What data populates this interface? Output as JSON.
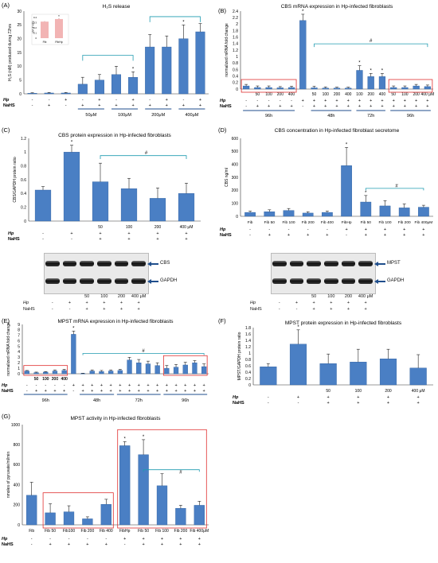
{
  "chart_data": [
    {
      "id": "A",
      "letter": "(A)",
      "type": "bar",
      "title": "H₂S release",
      "ylabel": "H₂S (nM) produced during 72hrs",
      "ylim": [
        0,
        30
      ],
      "yticks": [
        0,
        5,
        10,
        15,
        20,
        25,
        30
      ],
      "values": [
        0.2,
        0.3,
        0.3,
        3.5,
        5.0,
        7.0,
        6.0,
        17.0,
        17.0,
        20.0,
        22.5
      ],
      "errors": [
        0.2,
        0.2,
        0.2,
        2.5,
        2.0,
        3.0,
        2.0,
        4.5,
        4.0,
        5.0,
        3.0
      ],
      "stars": [
        6,
        9
      ],
      "row_labels": [
        "Hp",
        "NaHS"
      ],
      "rows": [
        [
          "-",
          "-",
          "+",
          "-",
          "+",
          "-",
          "+",
          "-",
          "+",
          "-",
          "+"
        ],
        [
          "-",
          "+",
          "-",
          "+",
          "+",
          "+",
          "+",
          "+",
          "+",
          "+",
          "+"
        ]
      ],
      "dose_labels": [
        "50μM",
        "100μM",
        "200μM",
        "400μM"
      ],
      "inset": {
        "categories": [
          "Fib",
          "FibHp"
        ],
        "values": [
          0.32,
          0.37
        ],
        "errors": [
          0.01,
          0.015
        ],
        "ylabel": "uM of H2S",
        "yticks": [
          "0",
          "0.1",
          "0.2",
          "0.3",
          "0.4"
        ],
        "stars": [
          1
        ]
      }
    },
    {
      "id": "B",
      "letter": "(B)",
      "type": "bar",
      "title": "CBS mRNA expression in Hp-infected fibroblasts",
      "ylabel": "normalized mRNA fold change",
      "ylim": [
        0,
        2.5
      ],
      "yticks": [
        "0",
        "0.2",
        "0.4",
        "0.6",
        "0.8",
        "1",
        "1.2",
        "1.4",
        "1.6",
        "1.8",
        "2",
        "2.2",
        "2.4"
      ],
      "values": [
        0.1,
        0.05,
        0.05,
        0.04,
        0.05,
        2.2,
        0.04,
        0.03,
        0.03,
        0.03,
        0.6,
        0.4,
        0.4,
        0.05,
        0.05,
        0.1,
        0.08
      ],
      "errors": [
        0.05,
        0.05,
        0.05,
        0.04,
        0.04,
        0.2,
        0.05,
        0.04,
        0.03,
        0.03,
        0.15,
        0.1,
        0.1,
        0.05,
        0.05,
        0.05,
        0.05
      ],
      "stars": [
        5,
        10,
        11,
        12
      ],
      "tick_labels": [
        "",
        "50",
        "100",
        "200",
        "400",
        "",
        "50",
        "100",
        "200",
        "400",
        "100",
        "200",
        "400",
        "50",
        "100",
        "200",
        "400 μM"
      ],
      "row_labels": [
        "Hp",
        "NaHS"
      ],
      "rows": [
        [
          "-",
          "-",
          "-",
          "-",
          "-",
          "+",
          "+",
          "+",
          "+",
          "+",
          "+",
          "+",
          "+",
          "+",
          "+",
          "+",
          "+"
        ],
        [
          "-",
          "+",
          "+",
          "+",
          "+",
          "-",
          "+",
          "+",
          "+",
          "+",
          "+",
          "+",
          "+",
          "+",
          "+",
          "+",
          "+"
        ]
      ],
      "group_labels": [
        "96h",
        "48h",
        "72h",
        "96h"
      ],
      "hash": "#"
    },
    {
      "id": "C",
      "letter": "(C)",
      "type": "bar",
      "title": "CBS protein expression in Hp-infected fibroblasts",
      "ylabel": "CBS/GAPDH protein ratio",
      "ylim": [
        0,
        1.2
      ],
      "yticks": [
        "0",
        "0.2",
        "0.4",
        "0.6",
        "0.8",
        "1",
        "1.2"
      ],
      "values": [
        0.45,
        1.0,
        0.57,
        0.47,
        0.33,
        0.4
      ],
      "errors": [
        0.05,
        0.1,
        0.27,
        0.15,
        0.15,
        0.15
      ],
      "stars": [
        1
      ],
      "tick_labels": [
        "",
        "",
        "50",
        "100",
        "200",
        "400 μM"
      ],
      "row_labels": [
        "Hp",
        "NaHS"
      ],
      "rows": [
        [
          "-",
          "+",
          "+",
          "+",
          "+",
          "+"
        ],
        [
          "-",
          "-",
          "+",
          "+",
          "+",
          "+"
        ]
      ],
      "hash": "#",
      "blot": {
        "bands": [
          "CBS",
          "GAPDH"
        ],
        "lanes": [
          "",
          "",
          "50",
          "100",
          "200",
          "400 μM"
        ],
        "hp": [
          "-",
          "+",
          "+",
          "+",
          "+",
          "+"
        ],
        "nahs": [
          "-",
          "-",
          "+",
          "+",
          "+",
          "+"
        ]
      }
    },
    {
      "id": "D",
      "letter": "(D)",
      "type": "bar",
      "title": "CBS concentration in Hp-infected fibroblast secretome",
      "ylabel": "CBS ng/ml",
      "ylim": [
        0,
        600
      ],
      "yticks": [
        "0",
        "100",
        "200",
        "300",
        "400",
        "500",
        "600"
      ],
      "categories": [
        "Fib",
        "Fib 50",
        "Fib 100",
        "Fib 200",
        "Fib 400",
        "FibHp",
        "Fib 50",
        "Fib 100",
        "Fib 200",
        "Fib 400μM"
      ],
      "values": [
        30,
        35,
        45,
        25,
        30,
        390,
        110,
        80,
        65,
        70
      ],
      "errors": [
        10,
        15,
        15,
        10,
        10,
        140,
        50,
        40,
        30,
        15
      ],
      "stars": [
        5,
        6
      ],
      "row_labels": [
        "Hp",
        "NaHS"
      ],
      "rows": [
        [
          "-",
          "-",
          "-",
          "-",
          "-",
          "+",
          "+",
          "+",
          "+",
          "+"
        ],
        [
          "-",
          "+",
          "+",
          "+",
          "+",
          "-",
          "+",
          "+",
          "+",
          "+"
        ]
      ],
      "hash": "#",
      "blot": {
        "bands": [
          "MPST",
          "GAPDH"
        ],
        "lanes": [
          "",
          "",
          "50",
          "100",
          "200",
          "400 μM"
        ],
        "hp": [
          "-",
          "+",
          "+",
          "+",
          "+",
          "+"
        ],
        "nahs": [
          "-",
          "-",
          "+",
          "+",
          "+",
          "+"
        ]
      }
    },
    {
      "id": "E",
      "letter": "(E)",
      "type": "bar",
      "title": "MPST mRNA expression in Hp-infected fibroblasts",
      "ylabel": "normalized mRNA fold change",
      "ylim": [
        0,
        9
      ],
      "yticks": [
        "0",
        "1",
        "2",
        "3",
        "4",
        "5",
        "6",
        "7",
        "8",
        "9"
      ],
      "values": [
        0.5,
        0.2,
        0.3,
        0.5,
        0.6,
        7.2,
        0.05,
        0.5,
        0.4,
        0.5,
        0.6,
        2.5,
        2.0,
        1.8,
        1.5,
        1.0,
        1.2,
        1.6,
        2.0,
        1.3
      ],
      "errors": [
        0.1,
        0.1,
        0.1,
        0.2,
        0.2,
        0.6,
        0.05,
        0.2,
        0.2,
        0.2,
        0.2,
        0.5,
        0.6,
        0.5,
        0.5,
        0.5,
        0.5,
        0.5,
        0.4,
        0.5
      ],
      "stars": [
        5
      ],
      "row_labels": [
        "Hp",
        "NaHS"
      ],
      "rows": [
        [
          "-",
          "-",
          "-",
          "-",
          "-",
          "+",
          "+",
          "+",
          "+",
          "+",
          "+",
          "+",
          "+",
          "+",
          "+",
          "+",
          "+",
          "+",
          "+",
          "+"
        ],
        [
          "-",
          "+",
          "+",
          "+",
          "+",
          "-",
          "+",
          "+",
          "+",
          "+",
          "+",
          "+",
          "+",
          "+",
          "+",
          "+",
          "+",
          "+",
          "+",
          "+"
        ]
      ],
      "tick_labels": [
        "",
        "50",
        "100",
        "200",
        "400"
      ],
      "group_labels": [
        "96h",
        "48h",
        "72h",
        "96h"
      ],
      "hash": "#"
    },
    {
      "id": "F",
      "letter": "(F)",
      "type": "bar",
      "title": "MPST protein expression in Hp-infected fibroblasts",
      "ylabel": "MPST/GAPDH protein ratio",
      "ylim": [
        0,
        1.8
      ],
      "yticks": [
        "0",
        "0.2",
        "0.4",
        "0.6",
        "0.8",
        "1",
        "1.2",
        "1.4",
        "1.6",
        "1.8"
      ],
      "values": [
        0.57,
        1.28,
        0.67,
        0.72,
        0.82,
        0.53
      ],
      "errors": [
        0.1,
        0.45,
        0.3,
        0.4,
        0.3,
        0.42
      ],
      "stars": [
        1
      ],
      "tick_labels": [
        "",
        "",
        "50",
        "100",
        "200",
        "400 μM"
      ],
      "row_labels": [
        "Hp",
        "NaHS"
      ],
      "rows": [
        [
          "-",
          "+",
          "+",
          "+",
          "+",
          "+"
        ],
        [
          "-",
          "-",
          "+",
          "+",
          "+",
          "+"
        ]
      ]
    },
    {
      "id": "G",
      "letter": "(G)",
      "type": "bar",
      "title": "MPST activity in Hp-infected fibroblasts",
      "ylabel": "nmoles of pyruvate/ml/min",
      "ylim": [
        0,
        1000
      ],
      "yticks": [
        "0",
        "200",
        "400",
        "600",
        "800",
        "1000"
      ],
      "categories": [
        "Fib",
        "Fib 50",
        "Fib100",
        "Fib 200",
        "Fib 400",
        "FibHp",
        "Fib 50",
        "Fib 100",
        "Fib 200",
        "Fib 400μM"
      ],
      "values": [
        295,
        120,
        130,
        60,
        205,
        790,
        700,
        390,
        165,
        195
      ],
      "errors": [
        130,
        90,
        60,
        20,
        50,
        40,
        150,
        120,
        30,
        40
      ],
      "stars": [
        5,
        6
      ],
      "row_labels": [
        "Hp",
        "NaHS"
      ],
      "rows": [
        [
          "-",
          "-",
          "-",
          "-",
          "-",
          "+",
          "+",
          "+",
          "+",
          "+"
        ],
        [
          "-",
          "+",
          "+",
          "+",
          "+",
          "-",
          "+",
          "+",
          "+",
          "+"
        ]
      ],
      "hash": "#"
    }
  ]
}
